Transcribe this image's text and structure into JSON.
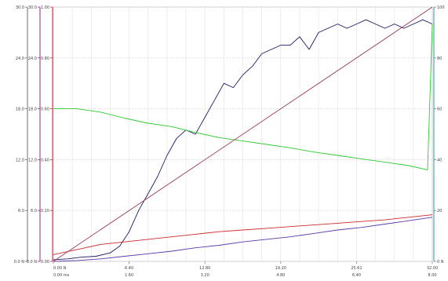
{
  "chart_data": {
    "type": "line",
    "grid": true,
    "x_axis": {
      "range": [
        0,
        8.0
      ],
      "tick_labels": [
        {
          "value": 0,
          "label": "0.00 ms"
        },
        {
          "value": 1.6,
          "label": "1.60"
        },
        {
          "value": 3.2,
          "label": "3.20"
        },
        {
          "value": 4.8,
          "label": "4.80"
        },
        {
          "value": 6.4,
          "label": "6.40"
        },
        {
          "value": 8.0,
          "label": "8.00"
        }
      ]
    },
    "top_axis": {
      "tick_labels": [
        {
          "value": 0,
          "label": "0.00 N"
        },
        {
          "value": 1.6,
          "label": "6.40"
        },
        {
          "value": 3.2,
          "label": "12.80"
        },
        {
          "value": 4.8,
          "label": "19.20"
        },
        {
          "value": 6.4,
          "label": "25.61"
        },
        {
          "value": 8.0,
          "label": "32.00"
        }
      ]
    },
    "left_axes": [
      {
        "color": "#6e6e6e",
        "range": [
          0,
          30
        ],
        "ticks": [
          {
            "v": 0,
            "label": "0.0 N"
          },
          {
            "v": 6,
            "label": "6.0"
          },
          {
            "v": 12,
            "label": "12.0"
          },
          {
            "v": 18,
            "label": "18.0"
          },
          {
            "v": 24,
            "label": "24.0"
          },
          {
            "v": 30,
            "label": "30.0"
          }
        ]
      },
      {
        "color": "#8a2a8a",
        "range": [
          0,
          30
        ],
        "ticks": [
          {
            "v": 0,
            "label": "0.0 N"
          },
          {
            "v": 6,
            "label": "6.0"
          },
          {
            "v": 12,
            "label": "12.0"
          },
          {
            "v": 18,
            "label": "18.0"
          },
          {
            "v": 24,
            "label": "24.0"
          },
          {
            "v": 30,
            "label": "30.0"
          }
        ]
      },
      {
        "color": "#c0304a",
        "range": [
          0,
          1.0
        ],
        "ticks": [
          {
            "v": 0,
            "label": "0.00"
          },
          {
            "v": 0.2,
            "label": "0.20"
          },
          {
            "v": 0.4,
            "label": "0.40"
          },
          {
            "v": 0.6,
            "label": "0.60"
          },
          {
            "v": 0.8,
            "label": "0.80"
          },
          {
            "v": 1.0,
            "label": "1.00"
          }
        ]
      }
    ],
    "right_axis": {
      "color": "#2f9a8e",
      "range": [
        0,
        100
      ],
      "ticks": [
        {
          "v": 0,
          "label": "0 N"
        },
        {
          "v": 20,
          "label": "20"
        },
        {
          "v": 40,
          "label": "40"
        },
        {
          "v": 60,
          "label": "60"
        },
        {
          "v": 80,
          "label": "80"
        },
        {
          "v": 100,
          "label": "100"
        }
      ]
    },
    "series": [
      {
        "color": "#1a1a66",
        "axis": "left0",
        "x": [
          0,
          0.3,
          0.6,
          0.9,
          1.2,
          1.4,
          1.6,
          1.8,
          2.0,
          2.2,
          2.4,
          2.6,
          2.8,
          3.0,
          3.2,
          3.4,
          3.6,
          3.8,
          4.0,
          4.2,
          4.4,
          4.6,
          4.8,
          5.0,
          5.2,
          5.4,
          5.6,
          5.8,
          6.0,
          6.2,
          6.4,
          6.6,
          6.8,
          7.0,
          7.2,
          7.4,
          7.6,
          7.8,
          8.0
        ],
        "y": [
          0.2,
          0.3,
          0.5,
          0.6,
          1.0,
          1.8,
          3.5,
          6.0,
          8.0,
          10.0,
          12.5,
          14.5,
          15.5,
          15.0,
          17.0,
          19.0,
          21.0,
          20.5,
          22.0,
          23.0,
          24.5,
          25.0,
          25.5,
          25.5,
          26.5,
          25.0,
          27.0,
          27.5,
          28.0,
          27.5,
          28.0,
          28.5,
          28.0,
          27.5,
          28.0,
          27.5,
          28.0,
          28.5,
          28.0
        ]
      },
      {
        "color": "#2ec82e",
        "axis": "left0",
        "x": [
          0,
          0.5,
          1.0,
          1.5,
          2.0,
          2.5,
          3.0,
          3.5,
          4.0,
          4.5,
          5.0,
          5.5,
          6.0,
          6.5,
          7.0,
          7.5,
          7.9,
          8.0
        ],
        "y": [
          18.0,
          18.0,
          17.6,
          16.9,
          16.3,
          15.9,
          15.2,
          14.6,
          14.2,
          13.8,
          13.4,
          12.9,
          12.5,
          12.1,
          11.7,
          11.3,
          10.8,
          28.0
        ]
      },
      {
        "color": "#cc2a2a",
        "axis": "left0",
        "x": [
          0,
          0.5,
          1.0,
          1.5,
          2.0,
          2.5,
          3.0,
          3.5,
          4.0,
          4.5,
          5.0,
          5.5,
          6.0,
          6.5,
          7.0,
          7.5,
          8.0
        ],
        "y": [
          0.8,
          1.4,
          2.0,
          2.3,
          2.6,
          2.9,
          3.2,
          3.5,
          3.7,
          3.9,
          4.1,
          4.3,
          4.5,
          4.7,
          4.9,
          5.2,
          5.5
        ]
      },
      {
        "color": "#5a3aa8",
        "axis": "left0",
        "x": [
          0,
          0.5,
          1.0,
          1.5,
          2.0,
          2.5,
          3.0,
          3.5,
          4.0,
          4.5,
          5.0,
          5.5,
          6.0,
          6.5,
          7.0,
          7.5,
          8.0
        ],
        "y": [
          0,
          0.1,
          0.3,
          0.6,
          0.9,
          1.2,
          1.6,
          1.9,
          2.3,
          2.6,
          2.9,
          3.3,
          3.7,
          4.0,
          4.4,
          4.8,
          5.2
        ]
      },
      {
        "color": "#9a3a5a",
        "axis": "left0",
        "x": [
          0,
          8.0
        ],
        "y": [
          0,
          30.0
        ]
      }
    ]
  }
}
